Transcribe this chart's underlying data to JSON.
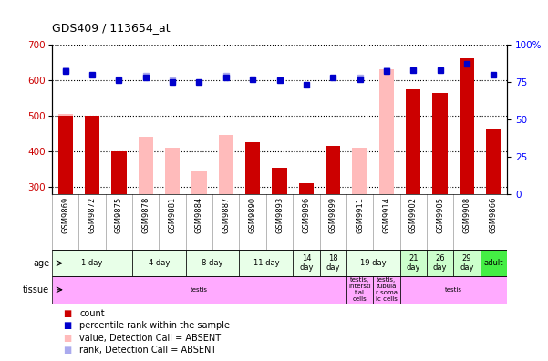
{
  "title": "GDS409 / 113654_at",
  "samples": [
    "GSM9869",
    "GSM9872",
    "GSM9875",
    "GSM9878",
    "GSM9881",
    "GSM9884",
    "GSM9887",
    "GSM9890",
    "GSM9893",
    "GSM9896",
    "GSM9899",
    "GSM9911",
    "GSM9914",
    "GSM9902",
    "GSM9905",
    "GSM9908",
    "GSM9866"
  ],
  "count_values": [
    500,
    500,
    400,
    0,
    0,
    0,
    0,
    425,
    355,
    310,
    415,
    0,
    0,
    575,
    565,
    660,
    465
  ],
  "absent_value": [
    505,
    0,
    400,
    440,
    410,
    345,
    445,
    0,
    0,
    0,
    415,
    410,
    630,
    0,
    0,
    0,
    0
  ],
  "percentile_rank": [
    82,
    80,
    76,
    78,
    75,
    75,
    78,
    77,
    76,
    73,
    78,
    77,
    82,
    83,
    83,
    87,
    80
  ],
  "absent_rank": [
    83,
    0,
    77,
    79,
    76,
    0,
    79,
    0,
    0,
    0,
    0,
    78,
    83,
    0,
    0,
    0,
    0
  ],
  "ymin": 280,
  "ymax": 700,
  "y_left_ticks": [
    300,
    400,
    500,
    600,
    700
  ],
  "y_right_ticks": [
    0,
    25,
    50,
    75,
    100
  ],
  "count_color": "#cc0000",
  "absent_bar_color": "#ffbbbb",
  "rank_dot_color": "#0000cc",
  "absent_rank_color": "#aaaaee",
  "age_groups": [
    {
      "label": "1 day",
      "cols": [
        0,
        1,
        2
      ],
      "color": "#e8ffe8"
    },
    {
      "label": "4 day",
      "cols": [
        3,
        4
      ],
      "color": "#e8ffe8"
    },
    {
      "label": "8 day",
      "cols": [
        5,
        6
      ],
      "color": "#e8ffe8"
    },
    {
      "label": "11 day",
      "cols": [
        7,
        8
      ],
      "color": "#e8ffe8"
    },
    {
      "label": "14\nday",
      "cols": [
        9
      ],
      "color": "#e8ffe8"
    },
    {
      "label": "18\nday",
      "cols": [
        10
      ],
      "color": "#e8ffe8"
    },
    {
      "label": "19 day",
      "cols": [
        11,
        12
      ],
      "color": "#e8ffe8"
    },
    {
      "label": "21\nday",
      "cols": [
        13
      ],
      "color": "#ccffcc"
    },
    {
      "label": "26\nday",
      "cols": [
        14
      ],
      "color": "#ccffcc"
    },
    {
      "label": "29\nday",
      "cols": [
        15
      ],
      "color": "#ccffcc"
    },
    {
      "label": "adult",
      "cols": [
        16
      ],
      "color": "#44ee44"
    }
  ],
  "tissue_groups": [
    {
      "label": "testis",
      "cols": [
        0,
        1,
        2,
        3,
        4,
        5,
        6,
        7,
        8,
        9,
        10
      ],
      "color": "#ffaaff"
    },
    {
      "label": "testis,\nintersti\ntial\ncells",
      "cols": [
        11
      ],
      "color": "#ffaaff"
    },
    {
      "label": "testis,\ntubula\nr soma\nic cells",
      "cols": [
        12
      ],
      "color": "#ffaaff"
    },
    {
      "label": "testis",
      "cols": [
        13,
        14,
        15,
        16
      ],
      "color": "#ffaaff"
    }
  ],
  "legend_items": [
    {
      "label": "count",
      "color": "#cc0000"
    },
    {
      "label": "percentile rank within the sample",
      "color": "#0000cc"
    },
    {
      "label": "value, Detection Call = ABSENT",
      "color": "#ffbbbb"
    },
    {
      "label": "rank, Detection Call = ABSENT",
      "color": "#aaaaee"
    }
  ]
}
